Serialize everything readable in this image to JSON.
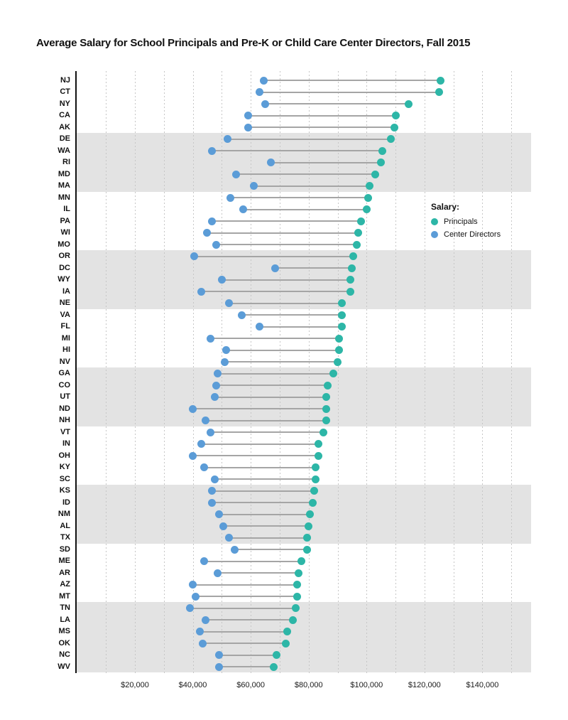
{
  "title": "Average Salary for School Principals and Pre-K or Child Care Center Directors, Fall 2015",
  "legend": {
    "heading": "Salary:",
    "items": [
      {
        "label": "Principals",
        "color": "#2db6a7",
        "series_key": "principal"
      },
      {
        "label": "Center Directors",
        "color": "#5b9cd7",
        "series_key": "director"
      }
    ]
  },
  "colors": {
    "principal": "#2db6a7",
    "director": "#5b9cd7",
    "connector": "#a5a5a5",
    "band": "#e3e3e3",
    "gridline": "#c6c6c6",
    "axis": "#111111"
  },
  "chart_data": {
    "type": "dumbbell",
    "title": "Average Salary for School Principals and Pre-K or Child Care Center Directors, Fall 2015",
    "series_names": [
      "Principals",
      "Center Directors"
    ],
    "x_axis": {
      "min": 0,
      "max": 155000,
      "gridline_values": [
        10000,
        20000,
        30000,
        40000,
        50000,
        60000,
        70000,
        80000,
        90000,
        100000,
        110000,
        120000,
        130000,
        140000,
        150000
      ],
      "ticks": [
        {
          "value": 20000,
          "label": "$20,000"
        },
        {
          "value": 40000,
          "label": "$40,000"
        },
        {
          "value": 60000,
          "label": "$60,000"
        },
        {
          "value": 80000,
          "label": "$80,000"
        },
        {
          "value": 100000,
          "label": "$100,000"
        },
        {
          "value": 120000,
          "label": "$120,000"
        },
        {
          "value": 140000,
          "label": "$140,000"
        }
      ]
    },
    "shaded_row_groups": [
      [
        5,
        9
      ],
      [
        15,
        19
      ],
      [
        25,
        29
      ],
      [
        35,
        39
      ],
      [
        45,
        50
      ]
    ],
    "rows": [
      {
        "state": "NJ",
        "principal": 125500,
        "director": 64500
      },
      {
        "state": "CT",
        "principal": 125000,
        "director": 63000
      },
      {
        "state": "NY",
        "principal": 114500,
        "director": 65000
      },
      {
        "state": "CA",
        "principal": 110000,
        "director": 59000
      },
      {
        "state": "AK",
        "principal": 109500,
        "director": 59000
      },
      {
        "state": "DE",
        "principal": 108500,
        "director": 52000
      },
      {
        "state": "WA",
        "principal": 105500,
        "director": 46500
      },
      {
        "state": "RI",
        "principal": 105000,
        "director": 67000
      },
      {
        "state": "MD",
        "principal": 103000,
        "director": 55000
      },
      {
        "state": "MA",
        "principal": 101000,
        "director": 61000
      },
      {
        "state": "MN",
        "principal": 100500,
        "director": 53000
      },
      {
        "state": "IL",
        "principal": 100000,
        "director": 57500
      },
      {
        "state": "PA",
        "principal": 98000,
        "director": 46500
      },
      {
        "state": "WI",
        "principal": 97000,
        "director": 45000
      },
      {
        "state": "MO",
        "principal": 96500,
        "director": 48000
      },
      {
        "state": "OR",
        "principal": 95500,
        "director": 40500
      },
      {
        "state": "DC",
        "principal": 95000,
        "director": 68500
      },
      {
        "state": "WY",
        "principal": 94500,
        "director": 50000
      },
      {
        "state": "IA",
        "principal": 94500,
        "director": 43000
      },
      {
        "state": "NE",
        "principal": 91500,
        "director": 52500
      },
      {
        "state": "VA",
        "principal": 91500,
        "director": 57000
      },
      {
        "state": "FL",
        "principal": 91500,
        "director": 63000
      },
      {
        "state": "MI",
        "principal": 90500,
        "director": 46000
      },
      {
        "state": "HI",
        "principal": 90500,
        "director": 51500
      },
      {
        "state": "NV",
        "principal": 90000,
        "director": 51000
      },
      {
        "state": "GA",
        "principal": 88500,
        "director": 48500
      },
      {
        "state": "CO",
        "principal": 86500,
        "director": 48000
      },
      {
        "state": "UT",
        "principal": 86000,
        "director": 47500
      },
      {
        "state": "ND",
        "principal": 86000,
        "director": 40000
      },
      {
        "state": "NH",
        "principal": 86000,
        "director": 44500
      },
      {
        "state": "VT",
        "principal": 85000,
        "director": 46000
      },
      {
        "state": "IN",
        "principal": 83500,
        "director": 43000
      },
      {
        "state": "OH",
        "principal": 83500,
        "director": 40000
      },
      {
        "state": "KY",
        "principal": 82500,
        "director": 44000
      },
      {
        "state": "SC",
        "principal": 82500,
        "director": 47500
      },
      {
        "state": "KS",
        "principal": 82000,
        "director": 46500
      },
      {
        "state": "ID",
        "principal": 81500,
        "director": 46500
      },
      {
        "state": "NM",
        "principal": 80500,
        "director": 49000
      },
      {
        "state": "AL",
        "principal": 80000,
        "director": 50500
      },
      {
        "state": "TX",
        "principal": 79500,
        "director": 52500
      },
      {
        "state": "SD",
        "principal": 79500,
        "director": 54500
      },
      {
        "state": "ME",
        "principal": 77500,
        "director": 44000
      },
      {
        "state": "AR",
        "principal": 76500,
        "director": 48500
      },
      {
        "state": "AZ",
        "principal": 76000,
        "director": 40000
      },
      {
        "state": "MT",
        "principal": 76000,
        "director": 41000
      },
      {
        "state": "TN",
        "principal": 75500,
        "director": 39000
      },
      {
        "state": "LA",
        "principal": 74500,
        "director": 44500
      },
      {
        "state": "MS",
        "principal": 72500,
        "director": 42500
      },
      {
        "state": "OK",
        "principal": 72000,
        "director": 43500
      },
      {
        "state": "NC",
        "principal": 69000,
        "director": 49000
      },
      {
        "state": "WV",
        "principal": 68000,
        "director": 49000
      }
    ]
  }
}
